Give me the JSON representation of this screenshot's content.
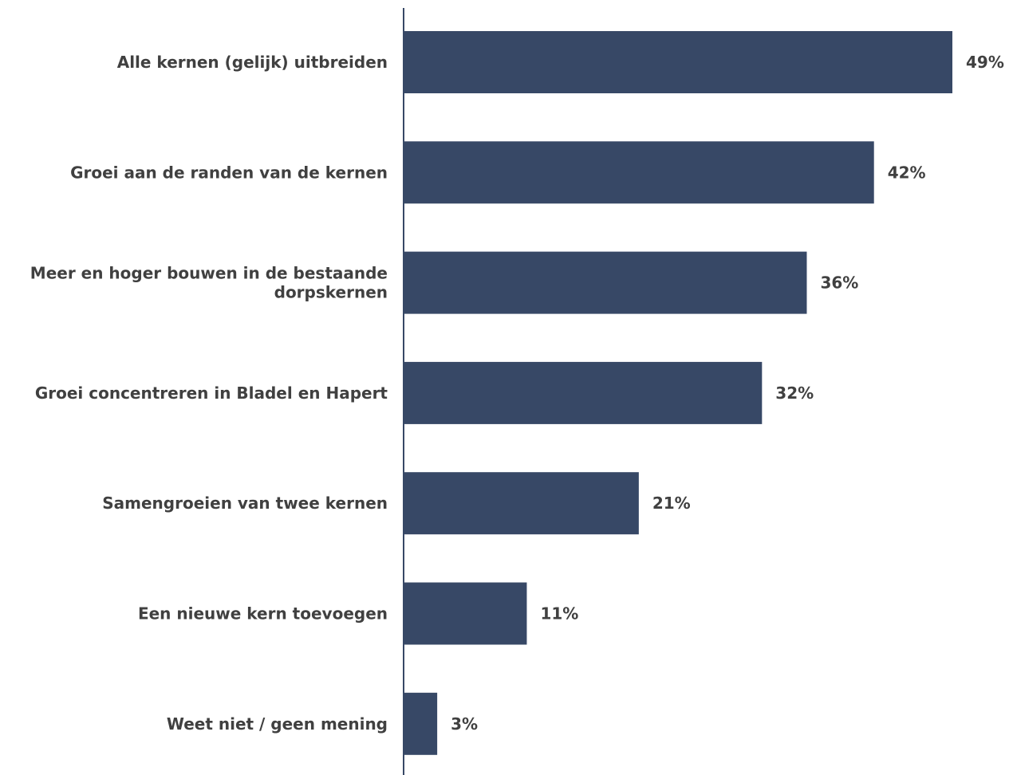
{
  "chart_data": {
    "type": "bar",
    "orientation": "horizontal",
    "title": "",
    "xlabel": "",
    "ylabel": "",
    "categories": [
      [
        "Alle kernen (gelijk) uitbreiden"
      ],
      [
        "Groei aan de randen van de kernen"
      ],
      [
        "Meer en hoger bouwen in de bestaande",
        "dorpskernen"
      ],
      [
        "Groei concentreren in Bladel en Hapert"
      ],
      [
        "Samengroeien van twee kernen"
      ],
      [
        "Een nieuwe kern toevoegen"
      ],
      [
        "Weet niet / geen mening"
      ]
    ],
    "values": [
      49,
      42,
      36,
      32,
      21,
      11,
      3
    ],
    "value_labels": [
      "49%",
      "42%",
      "36%",
      "32%",
      "21%",
      "11%",
      "3%"
    ],
    "xlim": [
      0,
      49
    ],
    "grid": false,
    "legend": "none",
    "colors": {
      "bar": "#374866",
      "axis": "#374866",
      "text": "#404040"
    }
  }
}
